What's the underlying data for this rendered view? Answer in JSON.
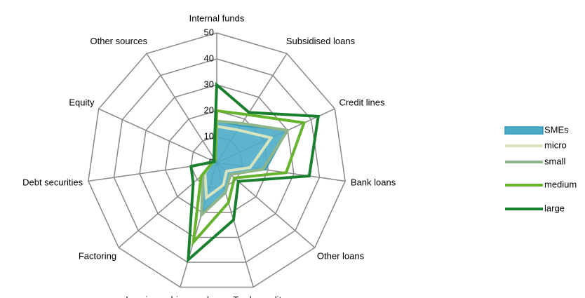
{
  "chart_data": {
    "type": "radar",
    "categories": [
      "Internal funds",
      "Subsidised loans",
      "Credit lines",
      "Bank loans",
      "Other loans",
      "Trade credit",
      "Leasing or hire-purchase",
      "Factoring",
      "Debt securities",
      "Equity",
      "Other sources"
    ],
    "ylim": [
      0,
      50
    ],
    "yticks": [
      0,
      10,
      20,
      30,
      40,
      50
    ],
    "grid": true,
    "legend": "right",
    "series": [
      {
        "name": "SMEs",
        "color": "#4bacc6",
        "area": true,
        "values": [
          16,
          17,
          30,
          19,
          7,
          12,
          20,
          7,
          2,
          1,
          1
        ]
      },
      {
        "name": "micro",
        "color": "#d7e4bd",
        "values": [
          14,
          15,
          23,
          13,
          5,
          9,
          14,
          6,
          2,
          1,
          1
        ]
      },
      {
        "name": "small",
        "color": "#8fb58a",
        "values": [
          16,
          18,
          30,
          18,
          7,
          12,
          21,
          7,
          2,
          1,
          1
        ]
      },
      {
        "name": "medium",
        "color": "#66b32e",
        "values": [
          20,
          22,
          37,
          27,
          9,
          16,
          32,
          8,
          2,
          1,
          1
        ]
      },
      {
        "name": "large",
        "color": "#1a7f2f",
        "values": [
          30,
          23,
          43,
          36,
          11,
          23,
          39,
          12,
          10,
          1,
          2
        ]
      }
    ]
  }
}
